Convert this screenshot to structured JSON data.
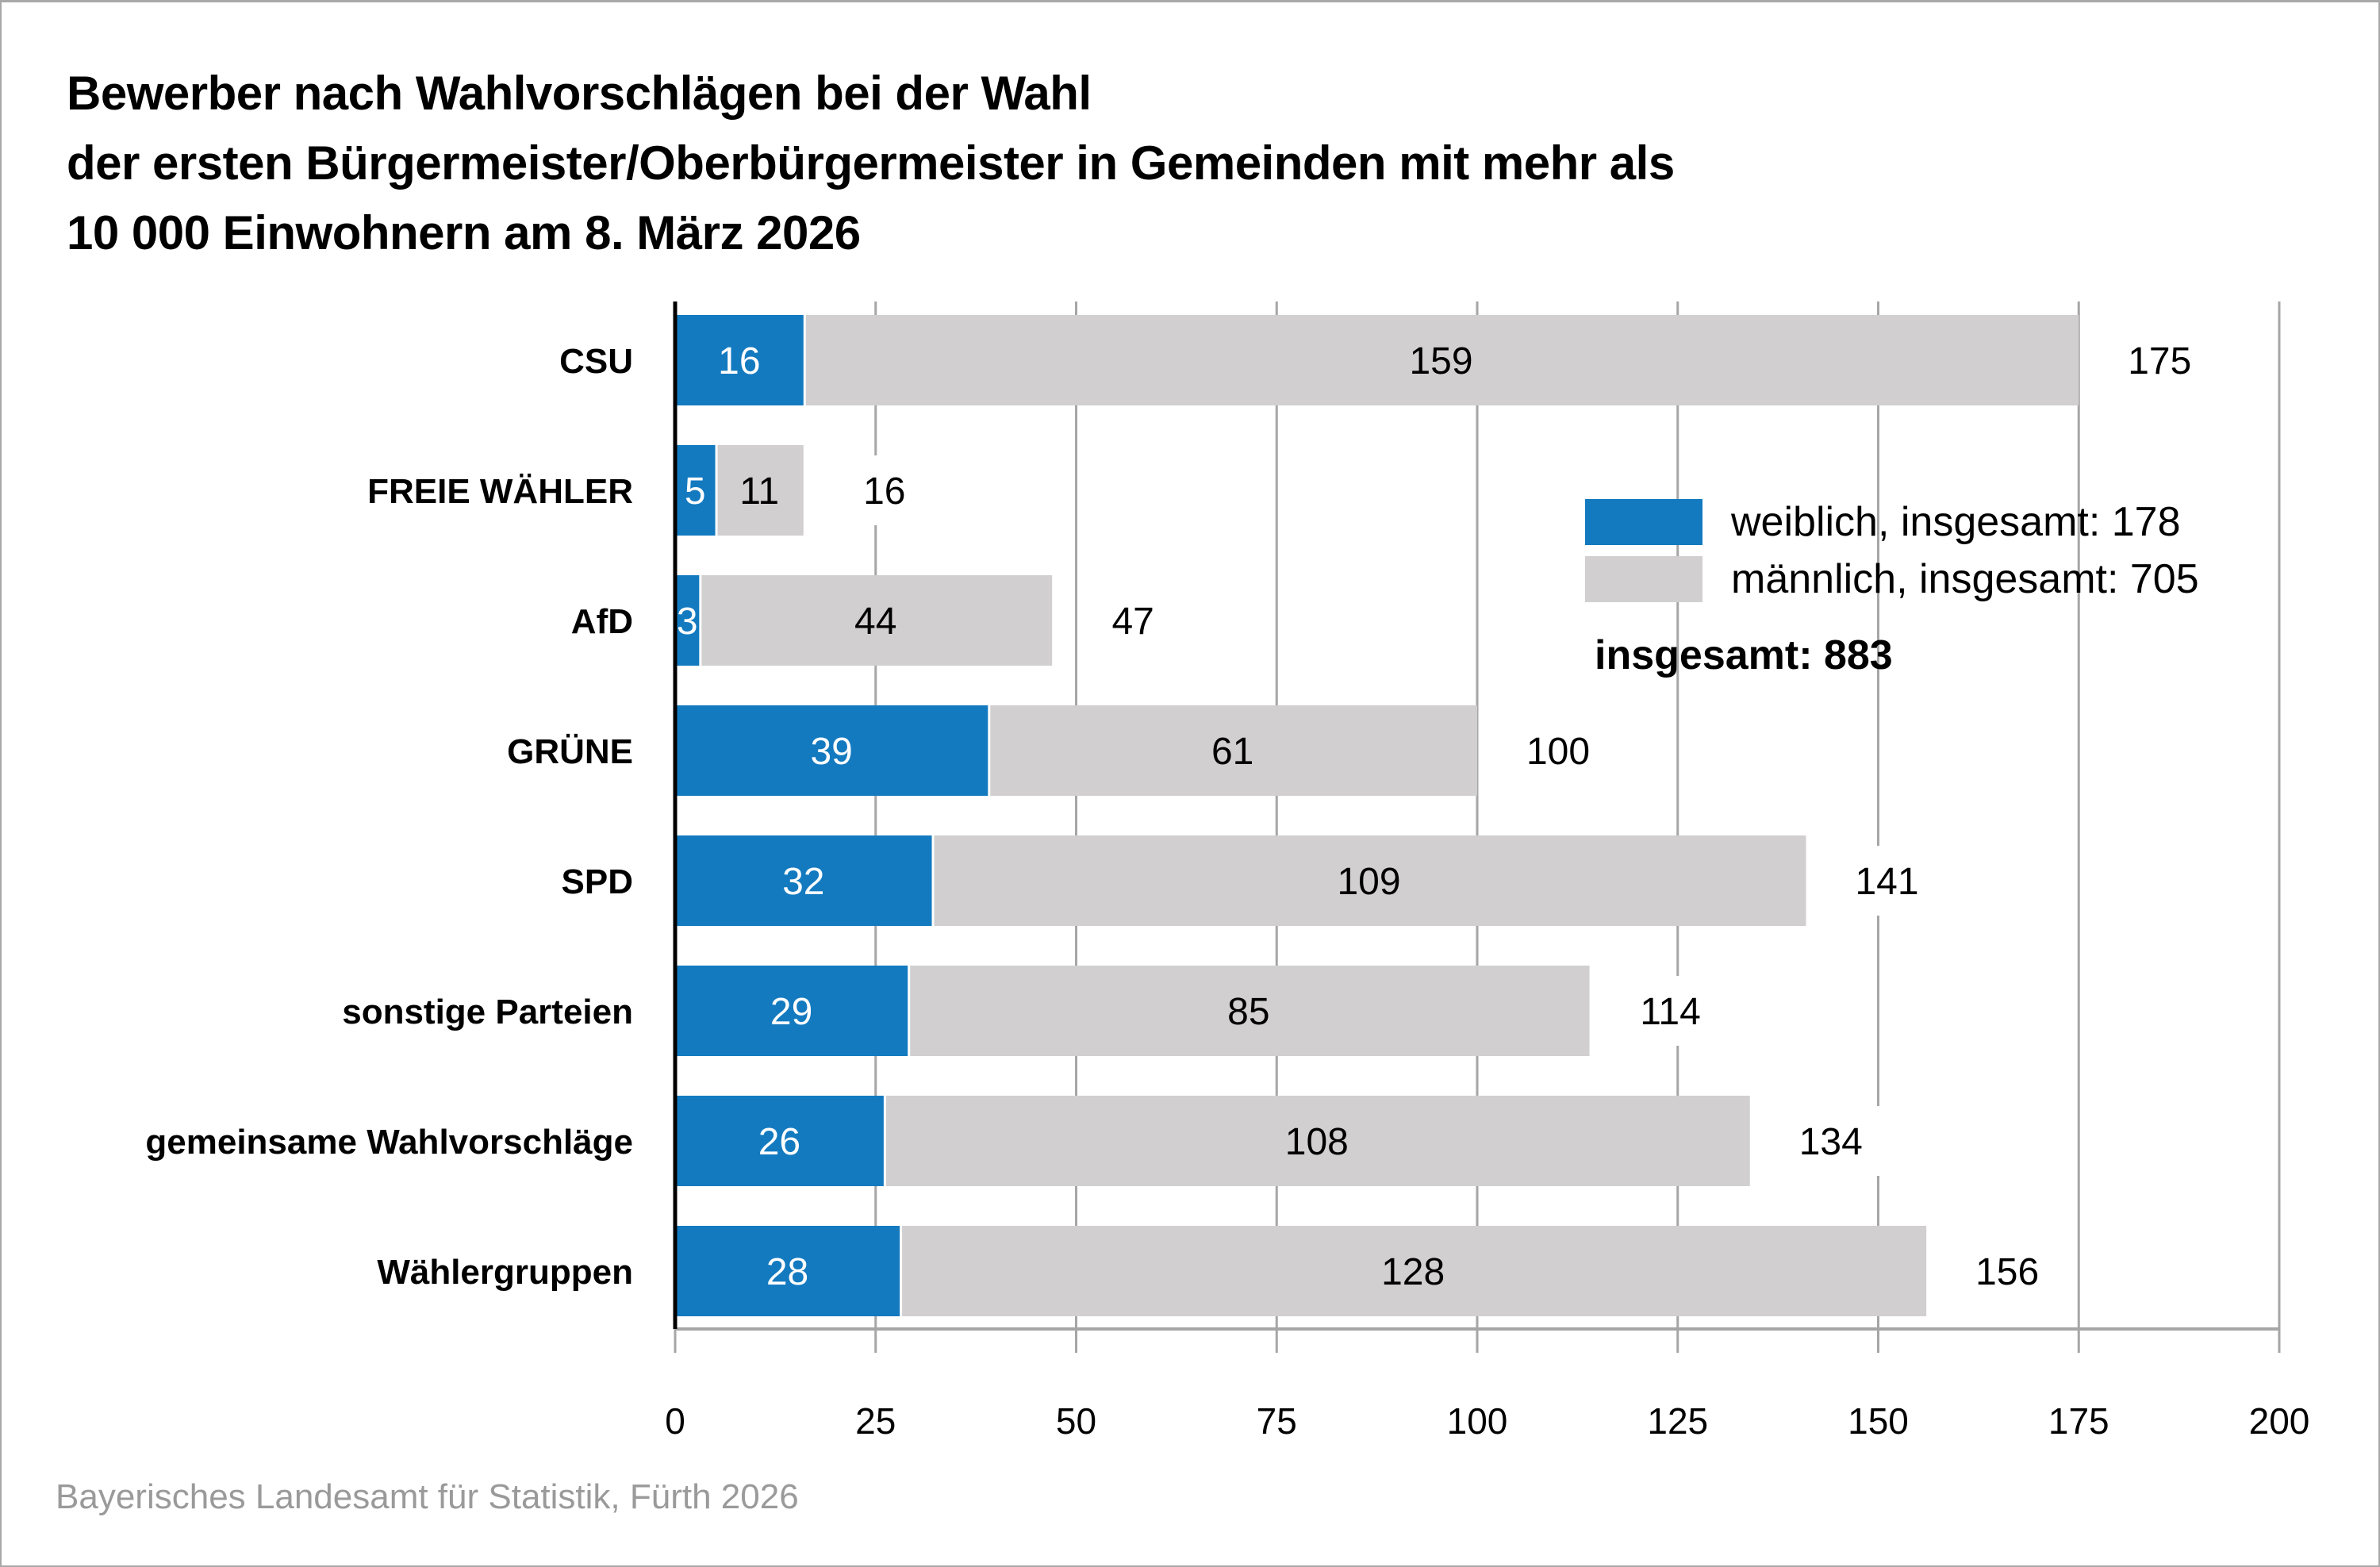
{
  "title_lines": [
    "Bewerber nach Wahlvorschlägen bei der Wahl",
    "der ersten Bürgermeister/Oberbürgermeister in Gemeinden mit mehr als",
    "10 000 Einwohnern am 8. März 2026"
  ],
  "footer": "Bayerisches Landesamt für Statistik, Fürth 2026",
  "colors": {
    "female": "#137ac0",
    "male": "#d1cfd0",
    "grid": "#a6a6a6",
    "axis": "#000000"
  },
  "legend": {
    "female": "weiblich, insgesamt: 178",
    "male": "männlich, insgesamt: 705",
    "total": "insgesamt: 883"
  },
  "chart_data": {
    "type": "bar",
    "orientation": "horizontal",
    "stacked": true,
    "title": "Bewerber nach Wahlvorschlägen bei der Wahl der ersten Bürgermeister/Oberbürgermeister in Gemeinden mit mehr als 10 000 Einwohnern am 8. März 2026",
    "categories": [
      "CSU",
      "FREIE WÄHLER",
      "AfD",
      "GRÜNE",
      "SPD",
      "sonstige Parteien",
      "gemeinsame Wahlvorschläge",
      "Wählergruppen"
    ],
    "series": [
      {
        "name": "weiblich, insgesamt: 178",
        "values": [
          16,
          5,
          3,
          39,
          32,
          29,
          26,
          28
        ]
      },
      {
        "name": "männlich, insgesamt: 705",
        "values": [
          159,
          11,
          44,
          61,
          109,
          85,
          108,
          128
        ]
      }
    ],
    "totals": [
      175,
      16,
      47,
      100,
      141,
      114,
      134,
      156
    ],
    "grand_total": 883,
    "xlabel": "",
    "ylabel": "",
    "xlim": [
      0,
      200
    ],
    "xticks": [
      0,
      25,
      50,
      75,
      100,
      125,
      150,
      175,
      200
    ],
    "grid": true,
    "legend_position": "right"
  }
}
